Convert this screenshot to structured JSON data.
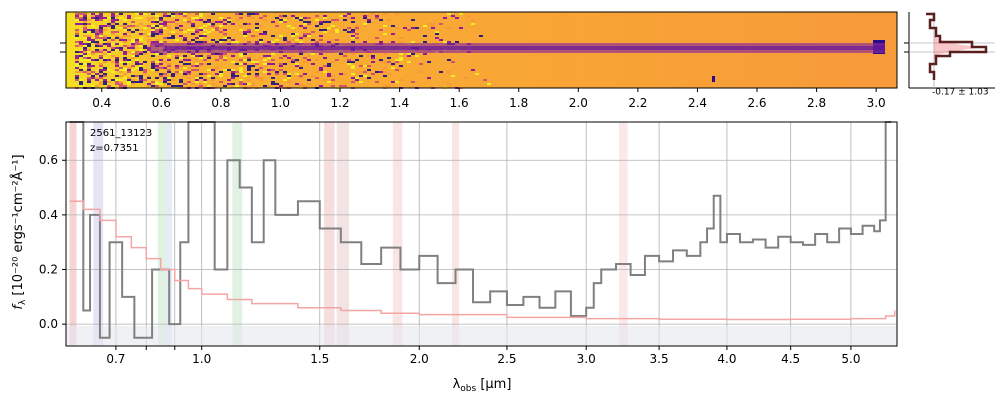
{
  "spectrum_2d": {
    "top_tick_labels": [
      "0.4",
      "0.6",
      "0.8",
      "1.0",
      "1.2",
      "1.4",
      "1.6",
      "1.8",
      "2.0",
      "2.2",
      "2.4",
      "2.6",
      "2.8",
      "3.0"
    ],
    "colormap": [
      "#0d0887",
      "#7e03a8",
      "#cc4778",
      "#f89540",
      "#f0f921"
    ],
    "side_panel_label": "-0.17 ± 1.03"
  },
  "chart_data": {
    "type": "line",
    "annotation_id": "2561_13123",
    "annotation_z": "z=0.7351",
    "xlabel": "λ",
    "xlabel_sub": "obs",
    "xlabel_unit": " [μm]",
    "ylabel_f": "f",
    "ylabel_sub": "λ",
    "ylabel_rest": " [10⁻²⁰ ergs⁻¹cm⁻²Å⁻¹]",
    "x_scale": "sqrt",
    "xlim": [
      0.55,
      5.4
    ],
    "ylim": [
      -0.08,
      0.74
    ],
    "x_ticks": [
      "0.7",
      "0.8",
      "0.9",
      "1.0",
      "1.5",
      "2.0",
      "2.5",
      "3.0",
      "3.5",
      "4.0",
      "4.5",
      "5.0"
    ],
    "x_ticks_labeled": [
      "0.7",
      "1.0",
      "1.5",
      "2.0",
      "2.5",
      "3.0",
      "3.5",
      "4.0",
      "4.5",
      "5.0"
    ],
    "y_ticks": [
      "0.0",
      "0.2",
      "0.4",
      "0.6"
    ],
    "grid": true,
    "series": [
      {
        "color": "#808080",
        "points": [
          [
            0.56,
            0.75
          ],
          [
            0.6,
            0.05
          ],
          [
            0.62,
            0.4
          ],
          [
            0.65,
            -0.05
          ],
          [
            0.68,
            0.3
          ],
          [
            0.72,
            0.1
          ],
          [
            0.76,
            -0.05
          ],
          [
            0.82,
            0.2
          ],
          [
            0.88,
            0.0
          ],
          [
            0.92,
            0.3
          ],
          [
            0.95,
            0.75
          ],
          [
            1.0,
            0.75
          ],
          [
            1.05,
            0.2
          ],
          [
            1.1,
            0.6
          ],
          [
            1.15,
            0.5
          ],
          [
            1.2,
            0.3
          ],
          [
            1.25,
            0.6
          ],
          [
            1.3,
            0.4
          ],
          [
            1.4,
            0.45
          ],
          [
            1.5,
            0.35
          ],
          [
            1.6,
            0.3
          ],
          [
            1.7,
            0.22
          ],
          [
            1.8,
            0.28
          ],
          [
            1.9,
            0.2
          ],
          [
            2.0,
            0.25
          ],
          [
            2.1,
            0.15
          ],
          [
            2.2,
            0.2
          ],
          [
            2.3,
            0.08
          ],
          [
            2.4,
            0.12
          ],
          [
            2.5,
            0.07
          ],
          [
            2.6,
            0.1
          ],
          [
            2.7,
            0.06
          ],
          [
            2.8,
            0.12
          ],
          [
            2.9,
            0.03
          ],
          [
            3.0,
            0.06
          ],
          [
            3.05,
            0.15
          ],
          [
            3.1,
            0.2
          ],
          [
            3.2,
            0.22
          ],
          [
            3.3,
            0.18
          ],
          [
            3.4,
            0.25
          ],
          [
            3.5,
            0.23
          ],
          [
            3.6,
            0.27
          ],
          [
            3.7,
            0.25
          ],
          [
            3.8,
            0.3
          ],
          [
            3.85,
            0.35
          ],
          [
            3.9,
            0.47
          ],
          [
            3.95,
            0.3
          ],
          [
            4.0,
            0.33
          ],
          [
            4.1,
            0.3
          ],
          [
            4.2,
            0.31
          ],
          [
            4.3,
            0.28
          ],
          [
            4.4,
            0.32
          ],
          [
            4.5,
            0.3
          ],
          [
            4.6,
            0.29
          ],
          [
            4.7,
            0.33
          ],
          [
            4.8,
            0.3
          ],
          [
            4.9,
            0.35
          ],
          [
            5.0,
            0.33
          ],
          [
            5.1,
            0.36
          ],
          [
            5.2,
            0.34
          ],
          [
            5.25,
            0.38
          ],
          [
            5.3,
            0.75
          ],
          [
            5.35,
            0.75
          ]
        ]
      },
      {
        "color": "#f4a5a5",
        "points": [
          [
            0.56,
            0.45
          ],
          [
            0.6,
            0.42
          ],
          [
            0.65,
            0.38
          ],
          [
            0.7,
            0.32
          ],
          [
            0.75,
            0.28
          ],
          [
            0.8,
            0.24
          ],
          [
            0.85,
            0.2
          ],
          [
            0.9,
            0.16
          ],
          [
            0.95,
            0.13
          ],
          [
            1.0,
            0.11
          ],
          [
            1.1,
            0.09
          ],
          [
            1.2,
            0.075
          ],
          [
            1.4,
            0.06
          ],
          [
            1.6,
            0.05
          ],
          [
            1.8,
            0.04
          ],
          [
            2.0,
            0.035
          ],
          [
            2.5,
            0.025
          ],
          [
            3.0,
            0.02
          ],
          [
            3.5,
            0.018
          ],
          [
            4.0,
            0.017
          ],
          [
            4.5,
            0.018
          ],
          [
            5.0,
            0.02
          ],
          [
            5.3,
            0.03
          ],
          [
            5.38,
            0.05
          ]
        ]
      }
    ]
  }
}
